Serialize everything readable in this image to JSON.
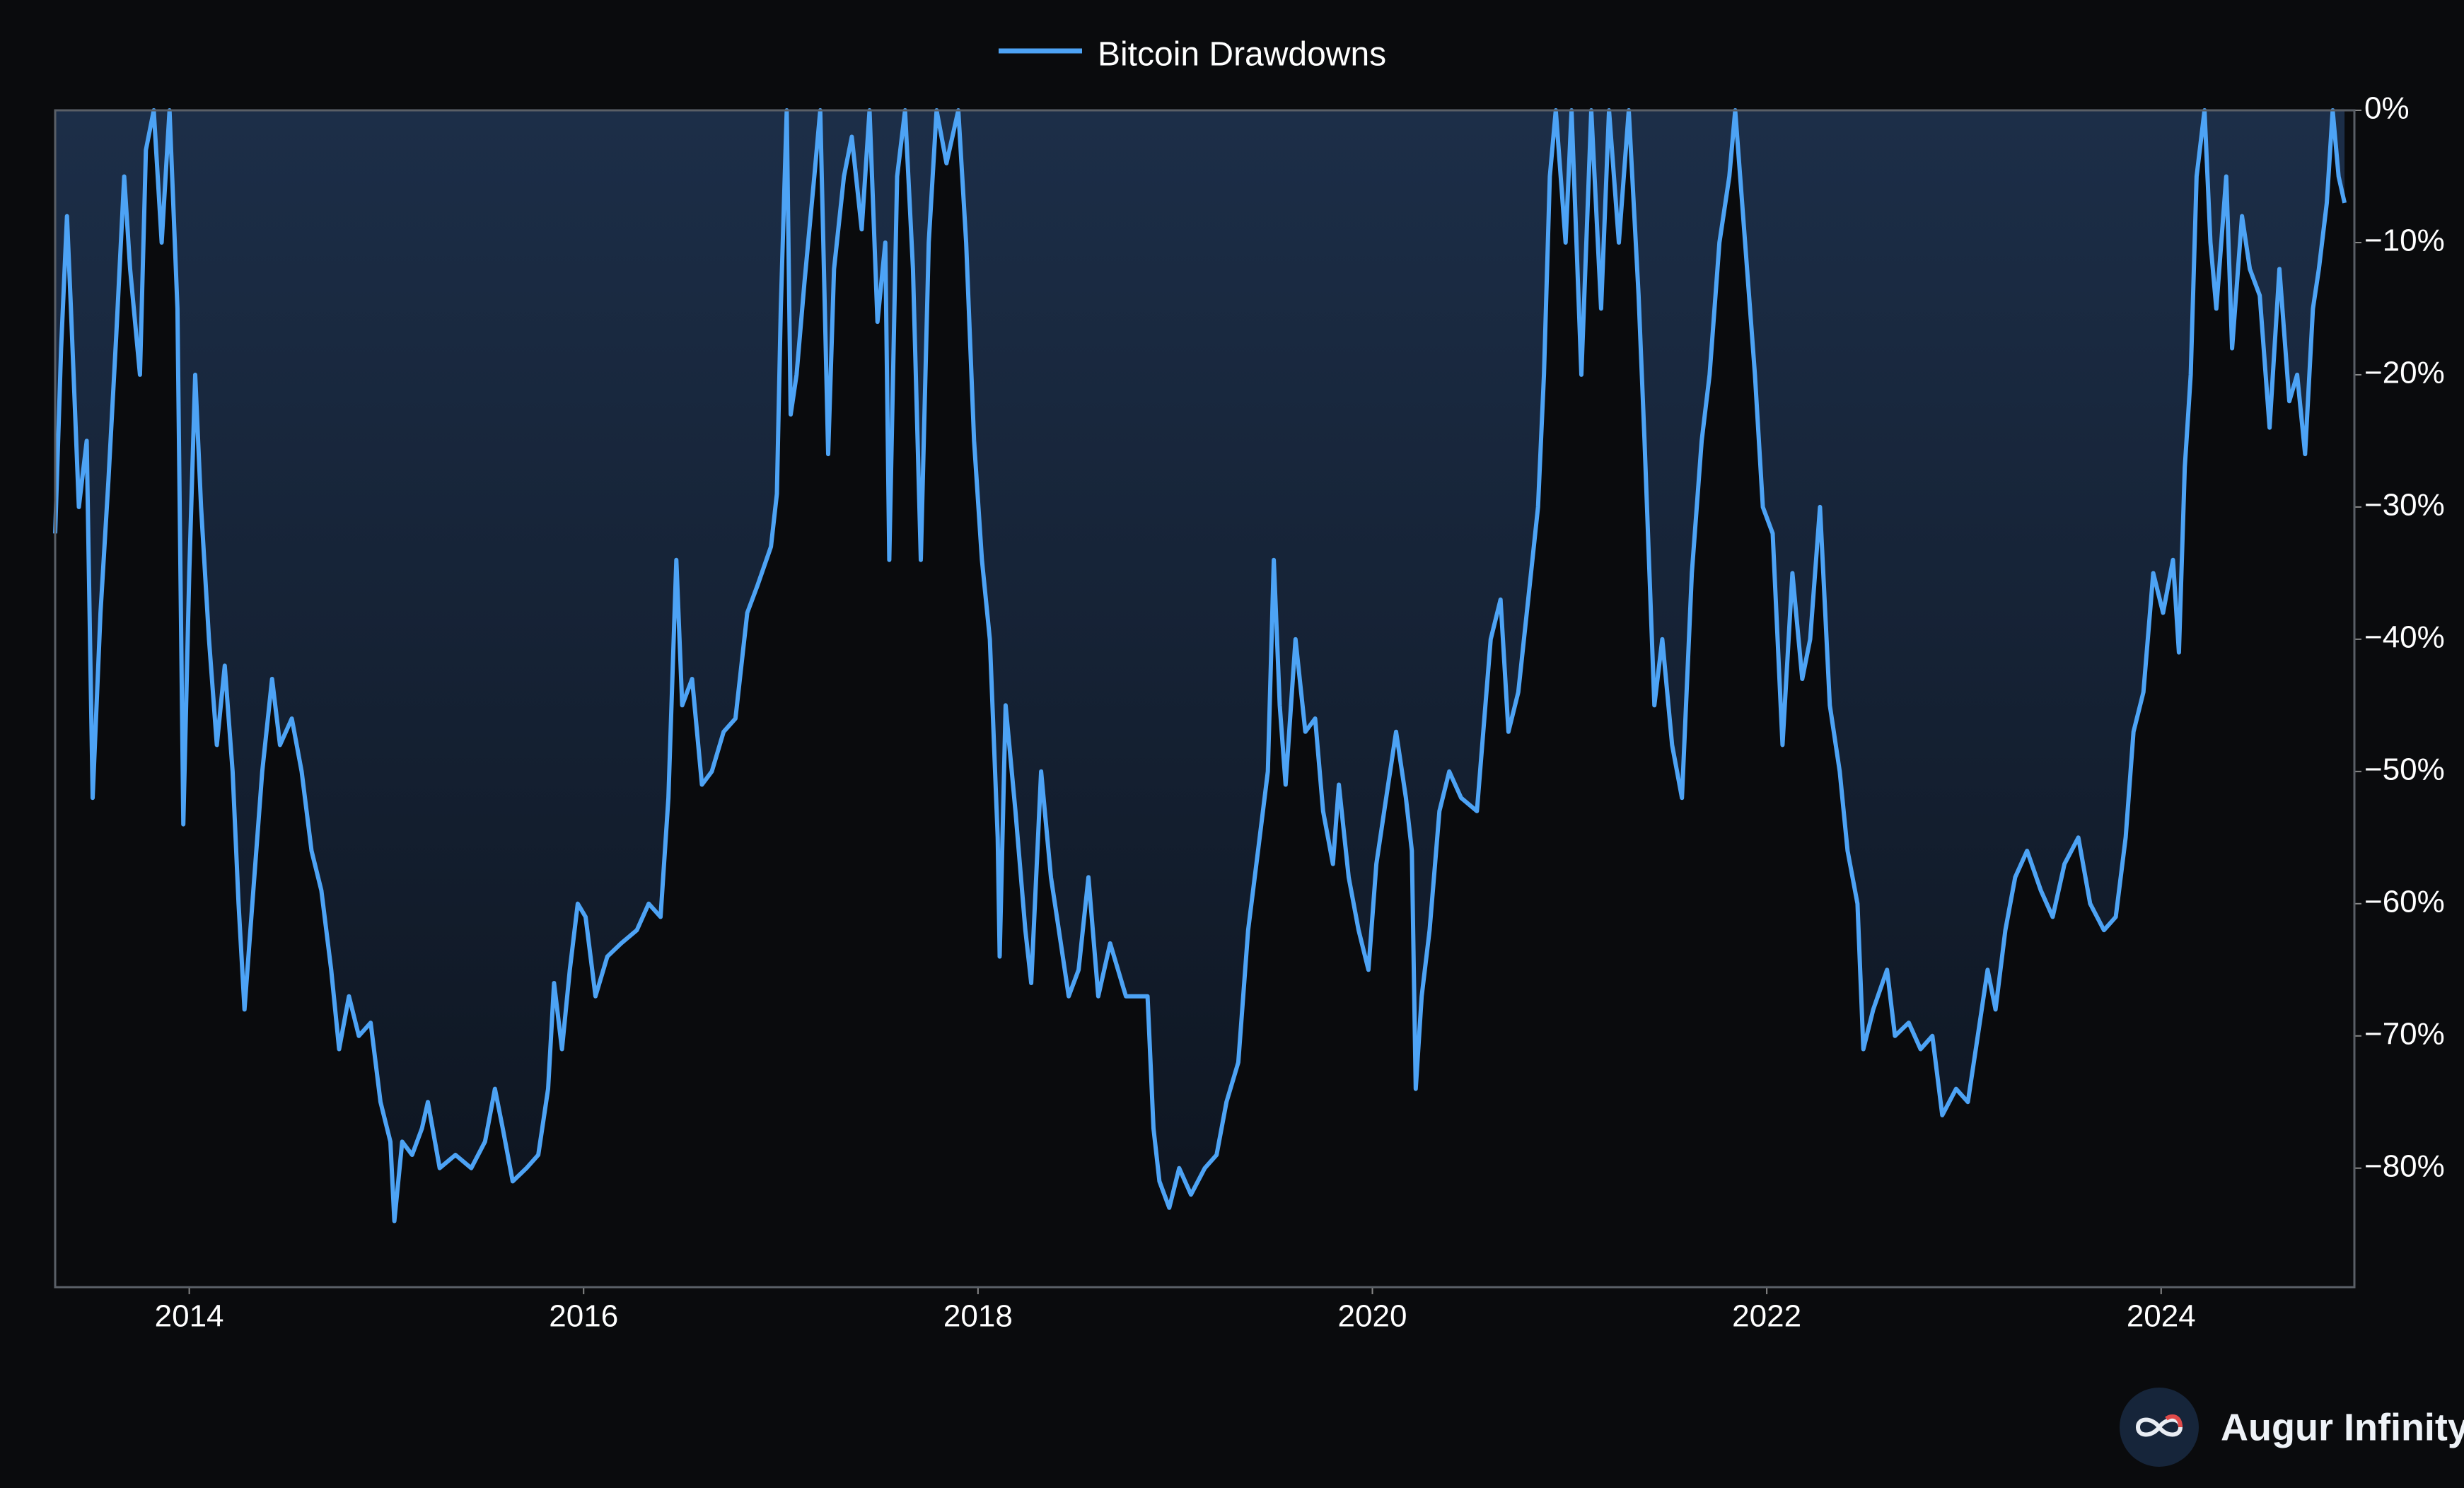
{
  "chart_data": {
    "type": "line",
    "fill": true,
    "legend": "upper center",
    "xlim": [
      2013.32,
      2024.98
    ],
    "ylim": [
      -89,
      0
    ],
    "xticks": [
      2014,
      2016,
      2018,
      2020,
      2022,
      2024
    ],
    "yticks": [
      {
        "value": 0,
        "label": "0%"
      },
      {
        "value": -10,
        "label": "−10%"
      },
      {
        "value": -20,
        "label": "−20%"
      },
      {
        "value": -30,
        "label": "−30%"
      },
      {
        "value": -40,
        "label": "−40%"
      },
      {
        "value": -50,
        "label": "−50%"
      },
      {
        "value": -60,
        "label": "−60%"
      },
      {
        "value": -70,
        "label": "−70%"
      },
      {
        "value": -80,
        "label": "−80%"
      }
    ],
    "x": [
      2013.32,
      2013.35,
      2013.38,
      2013.4,
      2013.44,
      2013.48,
      2013.51,
      2013.55,
      2013.59,
      2013.63,
      2013.67,
      2013.7,
      2013.75,
      2013.78,
      2013.82,
      2013.86,
      2013.9,
      2013.94,
      2013.97,
      2014.0,
      2014.03,
      2014.06,
      2014.1,
      2014.14,
      2014.18,
      2014.22,
      2014.25,
      2014.28,
      2014.32,
      2014.37,
      2014.42,
      2014.46,
      2014.52,
      2014.57,
      2014.62,
      2014.67,
      2014.72,
      2014.76,
      2014.81,
      2014.86,
      2014.92,
      2014.97,
      2015.02,
      2015.04,
      2015.08,
      2015.13,
      2015.18,
      2015.21,
      2015.27,
      2015.35,
      2015.43,
      2015.5,
      2015.55,
      2015.59,
      2015.64,
      2015.71,
      2015.77,
      2015.82,
      2015.85,
      2015.89,
      2015.93,
      2015.97,
      2016.01,
      2016.06,
      2016.12,
      2016.19,
      2016.27,
      2016.33,
      2016.39,
      2016.43,
      2016.47,
      2016.5,
      2016.55,
      2016.6,
      2016.65,
      2016.71,
      2016.77,
      2016.83,
      2016.88,
      2016.95,
      2016.98,
      2017.0,
      2017.03,
      2017.05,
      2017.08,
      2017.12,
      2017.17,
      2017.2,
      2017.24,
      2017.27,
      2017.32,
      2017.36,
      2017.41,
      2017.45,
      2017.49,
      2017.53,
      2017.55,
      2017.59,
      2017.63,
      2017.67,
      2017.71,
      2017.75,
      2017.79,
      2017.84,
      2017.9,
      2017.94,
      2017.98,
      2018.02,
      2018.06,
      2018.1,
      2018.11,
      2018.14,
      2018.19,
      2018.24,
      2018.27,
      2018.32,
      2018.37,
      2018.41,
      2018.46,
      2018.51,
      2018.56,
      2018.61,
      2018.67,
      2018.75,
      2018.86,
      2018.89,
      2018.92,
      2018.97,
      2019.02,
      2019.08,
      2019.15,
      2019.21,
      2019.26,
      2019.32,
      2019.37,
      2019.42,
      2019.47,
      2019.5,
      2019.53,
      2019.56,
      2019.61,
      2019.66,
      2019.71,
      2019.75,
      2019.8,
      2019.83,
      2019.88,
      2019.93,
      2019.98,
      2020.02,
      2020.07,
      2020.12,
      2020.17,
      2020.2,
      2020.22,
      2020.25,
      2020.29,
      2020.34,
      2020.39,
      2020.45,
      2020.53,
      2020.6,
      2020.65,
      2020.69,
      2020.74,
      2020.79,
      2020.84,
      2020.87,
      2020.9,
      2020.93,
      2020.98,
      2021.01,
      2021.06,
      2021.11,
      2021.16,
      2021.2,
      2021.25,
      2021.3,
      2021.35,
      2021.38,
      2021.43,
      2021.47,
      2021.52,
      2021.57,
      2021.62,
      2021.67,
      2021.71,
      2021.76,
      2021.81,
      2021.84,
      2021.89,
      2021.94,
      2021.98,
      2022.03,
      2022.08,
      2022.13,
      2022.18,
      2022.22,
      2022.27,
      2022.32,
      2022.37,
      2022.41,
      2022.46,
      2022.49,
      2022.54,
      2022.61,
      2022.65,
      2022.72,
      2022.78,
      2022.84,
      2022.89,
      2022.96,
      2023.02,
      2023.07,
      2023.12,
      2023.16,
      2023.21,
      2023.26,
      2023.32,
      2023.39,
      2023.45,
      2023.51,
      2023.58,
      2023.64,
      2023.71,
      2023.77,
      2023.82,
      2023.86,
      2023.91,
      2023.96,
      2024.01,
      2024.06,
      2024.09,
      2024.12,
      2024.15,
      2024.18,
      2024.22,
      2024.25,
      2024.28,
      2024.33,
      2024.36,
      2024.41,
      2024.45,
      2024.5,
      2024.55,
      2024.6,
      2024.65,
      2024.69,
      2024.73,
      2024.77,
      2024.8,
      2024.84,
      2024.87,
      2024.9,
      2024.93
    ],
    "series": [
      {
        "name": "Bitcoin Drawdowns",
        "color": "#4da3f5",
        "values": [
          -32,
          -18,
          -8,
          -15,
          -30,
          -25,
          -52,
          -38,
          -28,
          -17,
          -5,
          -12,
          -20,
          -3,
          0,
          -10,
          0,
          -15,
          -54,
          -35,
          -20,
          -30,
          -40,
          -48,
          -42,
          -50,
          -60,
          -68,
          -60,
          -50,
          -43,
          -48,
          -46,
          -50,
          -56,
          -59,
          -65,
          -71,
          -67,
          -70,
          -69,
          -75,
          -78,
          -84,
          -78,
          -79,
          -77,
          -75,
          -80,
          -79,
          -80,
          -78,
          -74,
          -77,
          -81,
          -80,
          -79,
          -74,
          -66,
          -71,
          -65,
          -60,
          -61,
          -67,
          -64,
          -63,
          -62,
          -60,
          -61,
          -52,
          -34,
          -45,
          -43,
          -51,
          -50,
          -47,
          -46,
          -38,
          -36,
          -33,
          -29,
          -15,
          0,
          -23,
          -20,
          -13,
          -5,
          0,
          -26,
          -12,
          -5,
          -2,
          -9,
          0,
          -16,
          -10,
          -34,
          -5,
          0,
          -12,
          -34,
          -10,
          0,
          -4,
          0,
          -10,
          -25,
          -34,
          -40,
          -55,
          -64,
          -45,
          -53,
          -62,
          -66,
          -50,
          -58,
          -62,
          -67,
          -65,
          -58,
          -67,
          -63,
          -67,
          -67,
          -77,
          -81,
          -83,
          -80,
          -82,
          -80,
          -79,
          -75,
          -72,
          -62,
          -56,
          -50,
          -34,
          -45,
          -51,
          -40,
          -47,
          -46,
          -53,
          -57,
          -51,
          -58,
          -62,
          -65,
          -57,
          -52,
          -47,
          -52,
          -56,
          -74,
          -67,
          -62,
          -53,
          -50,
          -52,
          -53,
          -40,
          -37,
          -47,
          -44,
          -37,
          -30,
          -20,
          -5,
          0,
          -10,
          0,
          -20,
          0,
          -15,
          0,
          -10,
          0,
          -14,
          -25,
          -45,
          -40,
          -48,
          -52,
          -35,
          -25,
          -20,
          -10,
          -5,
          0,
          -10,
          -20,
          -30,
          -32,
          -48,
          -35,
          -43,
          -40,
          -30,
          -45,
          -50,
          -56,
          -60,
          -71,
          -68,
          -65,
          -70,
          -69,
          -71,
          -70,
          -76,
          -74,
          -75,
          -70,
          -65,
          -68,
          -62,
          -58,
          -56,
          -59,
          -61,
          -57,
          -55,
          -60,
          -62,
          -61,
          -55,
          -47,
          -44,
          -35,
          -38,
          -34,
          -41,
          -27,
          -20,
          -5,
          0,
          -10,
          -15,
          -5,
          -18,
          -8,
          -12,
          -14,
          -24,
          -12,
          -22,
          -20,
          -26,
          -15,
          -12,
          -7,
          0,
          -5,
          -7
        ]
      }
    ]
  },
  "watermark": "Augur Infinity"
}
